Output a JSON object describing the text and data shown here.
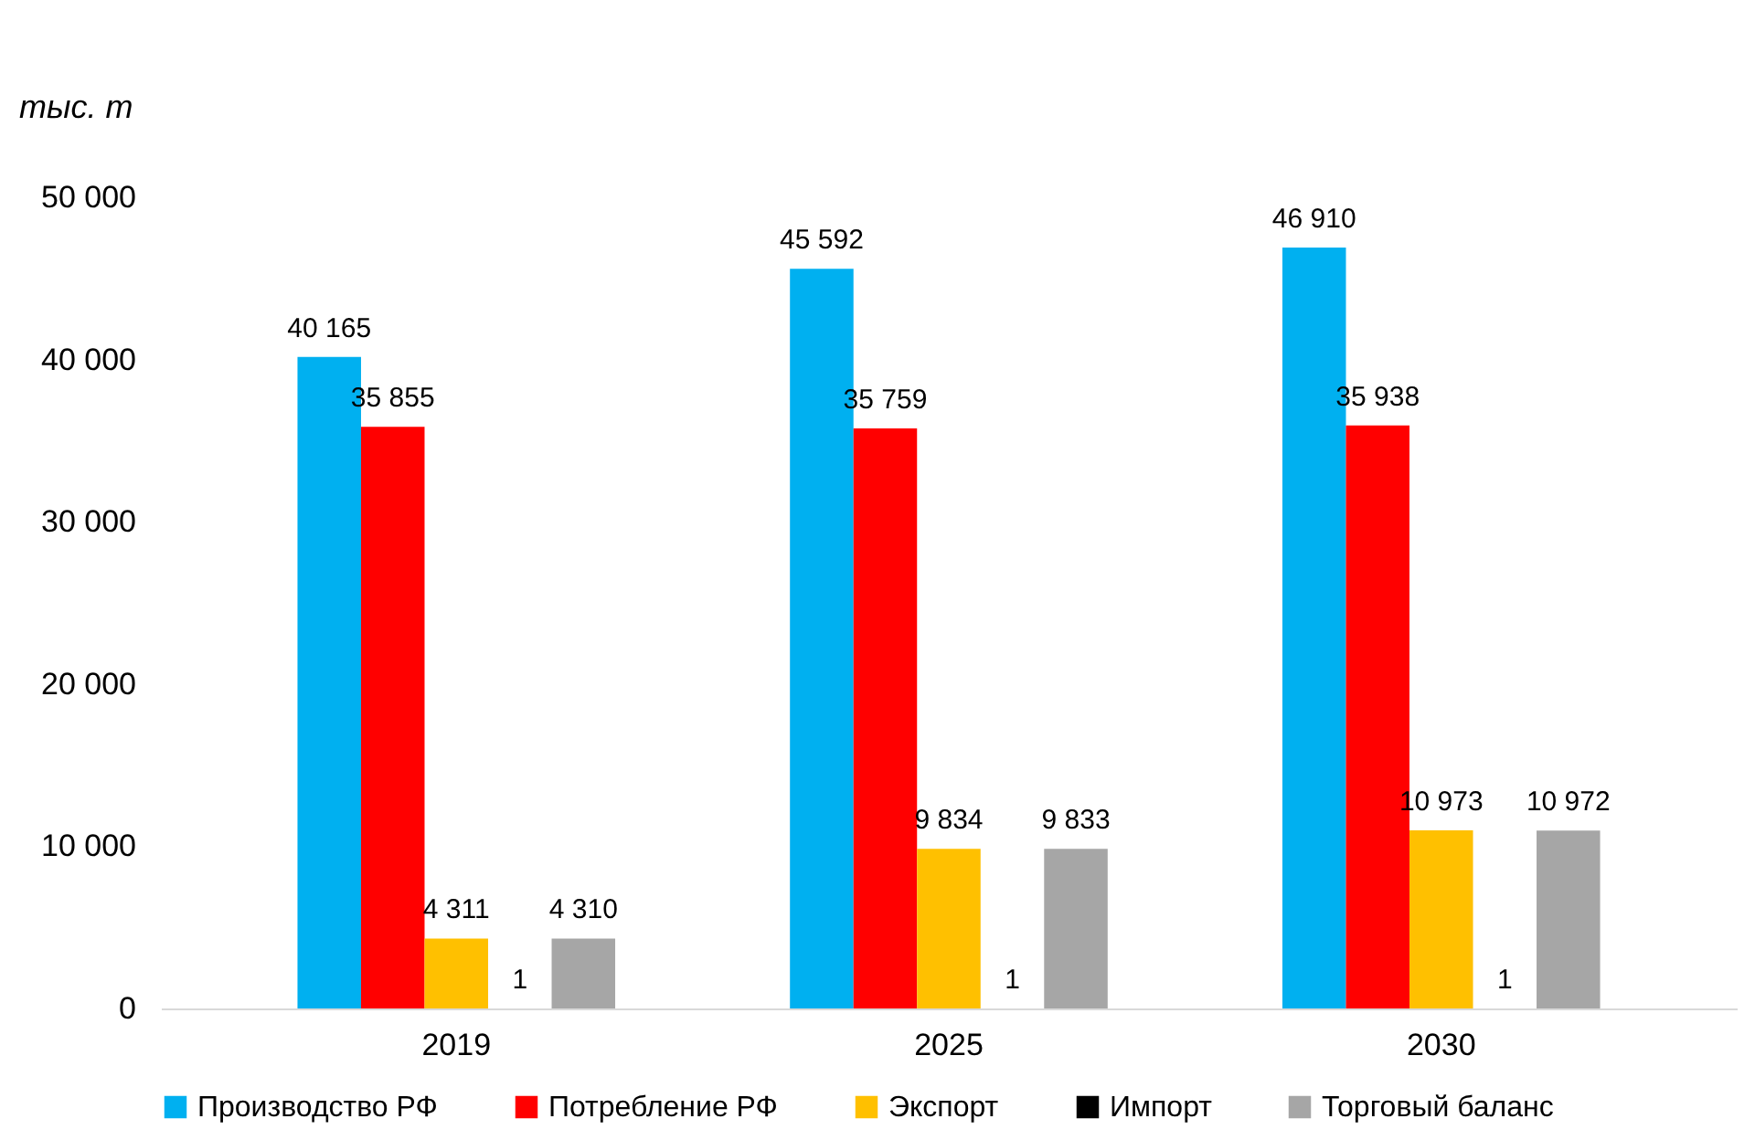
{
  "chart_data": {
    "type": "bar",
    "ylabel": "тыс. т",
    "categories": [
      "2019",
      "2025",
      "2030"
    ],
    "series": [
      {
        "name": "Производство РФ",
        "color": "#00b0f0",
        "values": [
          40165,
          45592,
          46910
        ],
        "value_labels": [
          "40 165",
          "45 592",
          "46 910"
        ]
      },
      {
        "name": "Потребление РФ",
        "color": "#ff0000",
        "values": [
          35855,
          35759,
          35938
        ],
        "value_labels": [
          "35 855",
          "35 759",
          "35 938"
        ]
      },
      {
        "name": "Экспорт",
        "color": "#ffc000",
        "values": [
          4311,
          9834,
          10973
        ],
        "value_labels": [
          "4 311",
          "9 834",
          "10 973"
        ]
      },
      {
        "name": "Импорт",
        "color": "#000000",
        "values": [
          1,
          1,
          1
        ],
        "value_labels": [
          "1",
          "1",
          "1"
        ]
      },
      {
        "name": "Торговый баланс",
        "color": "#a6a6a6",
        "values": [
          4310,
          9833,
          10972
        ],
        "value_labels": [
          "4 310",
          "9 833",
          "10 972"
        ]
      }
    ],
    "ylim": [
      0,
      50000
    ],
    "yticks": [
      0,
      {
        "value": 10000,
        "label": "10 000"
      },
      {
        "value": 20000,
        "label": "20 000"
      },
      {
        "value": 30000,
        "label": "30 000"
      },
      {
        "value": 40000,
        "label": "40 000"
      },
      {
        "value": 50000,
        "label": "50 000"
      }
    ],
    "grid": false,
    "legend": "bottom"
  }
}
